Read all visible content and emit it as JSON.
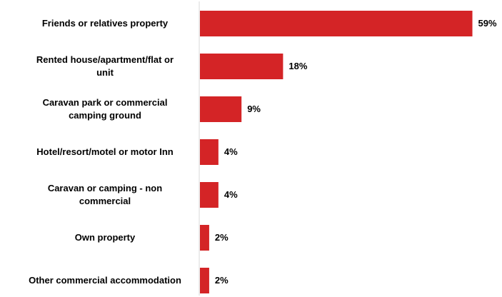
{
  "chart_data": {
    "type": "bar",
    "orientation": "horizontal",
    "title": "",
    "xlabel": "",
    "ylabel": "",
    "categories": [
      [
        "Friends or relatives property"
      ],
      [
        "Rented house/apartment/flat or",
        "unit"
      ],
      [
        "Caravan park or commercial",
        "camping ground"
      ],
      [
        "Hotel/resort/motel or motor Inn"
      ],
      [
        "Caravan or camping - non",
        "commercial"
      ],
      [
        "Own property"
      ],
      [
        "Other commercial accommodation"
      ]
    ],
    "values": [
      59,
      18,
      9,
      4,
      4,
      2,
      2
    ],
    "value_labels": [
      "59%",
      "18%",
      "9%",
      "4%",
      "4%",
      "2%",
      "2%"
    ],
    "unit": "%",
    "xlim": [
      0,
      60
    ],
    "grid": false,
    "legend": "none",
    "bar_color": "#d42426",
    "axis_color": "#d9d9d9",
    "text_color": "#000000"
  }
}
